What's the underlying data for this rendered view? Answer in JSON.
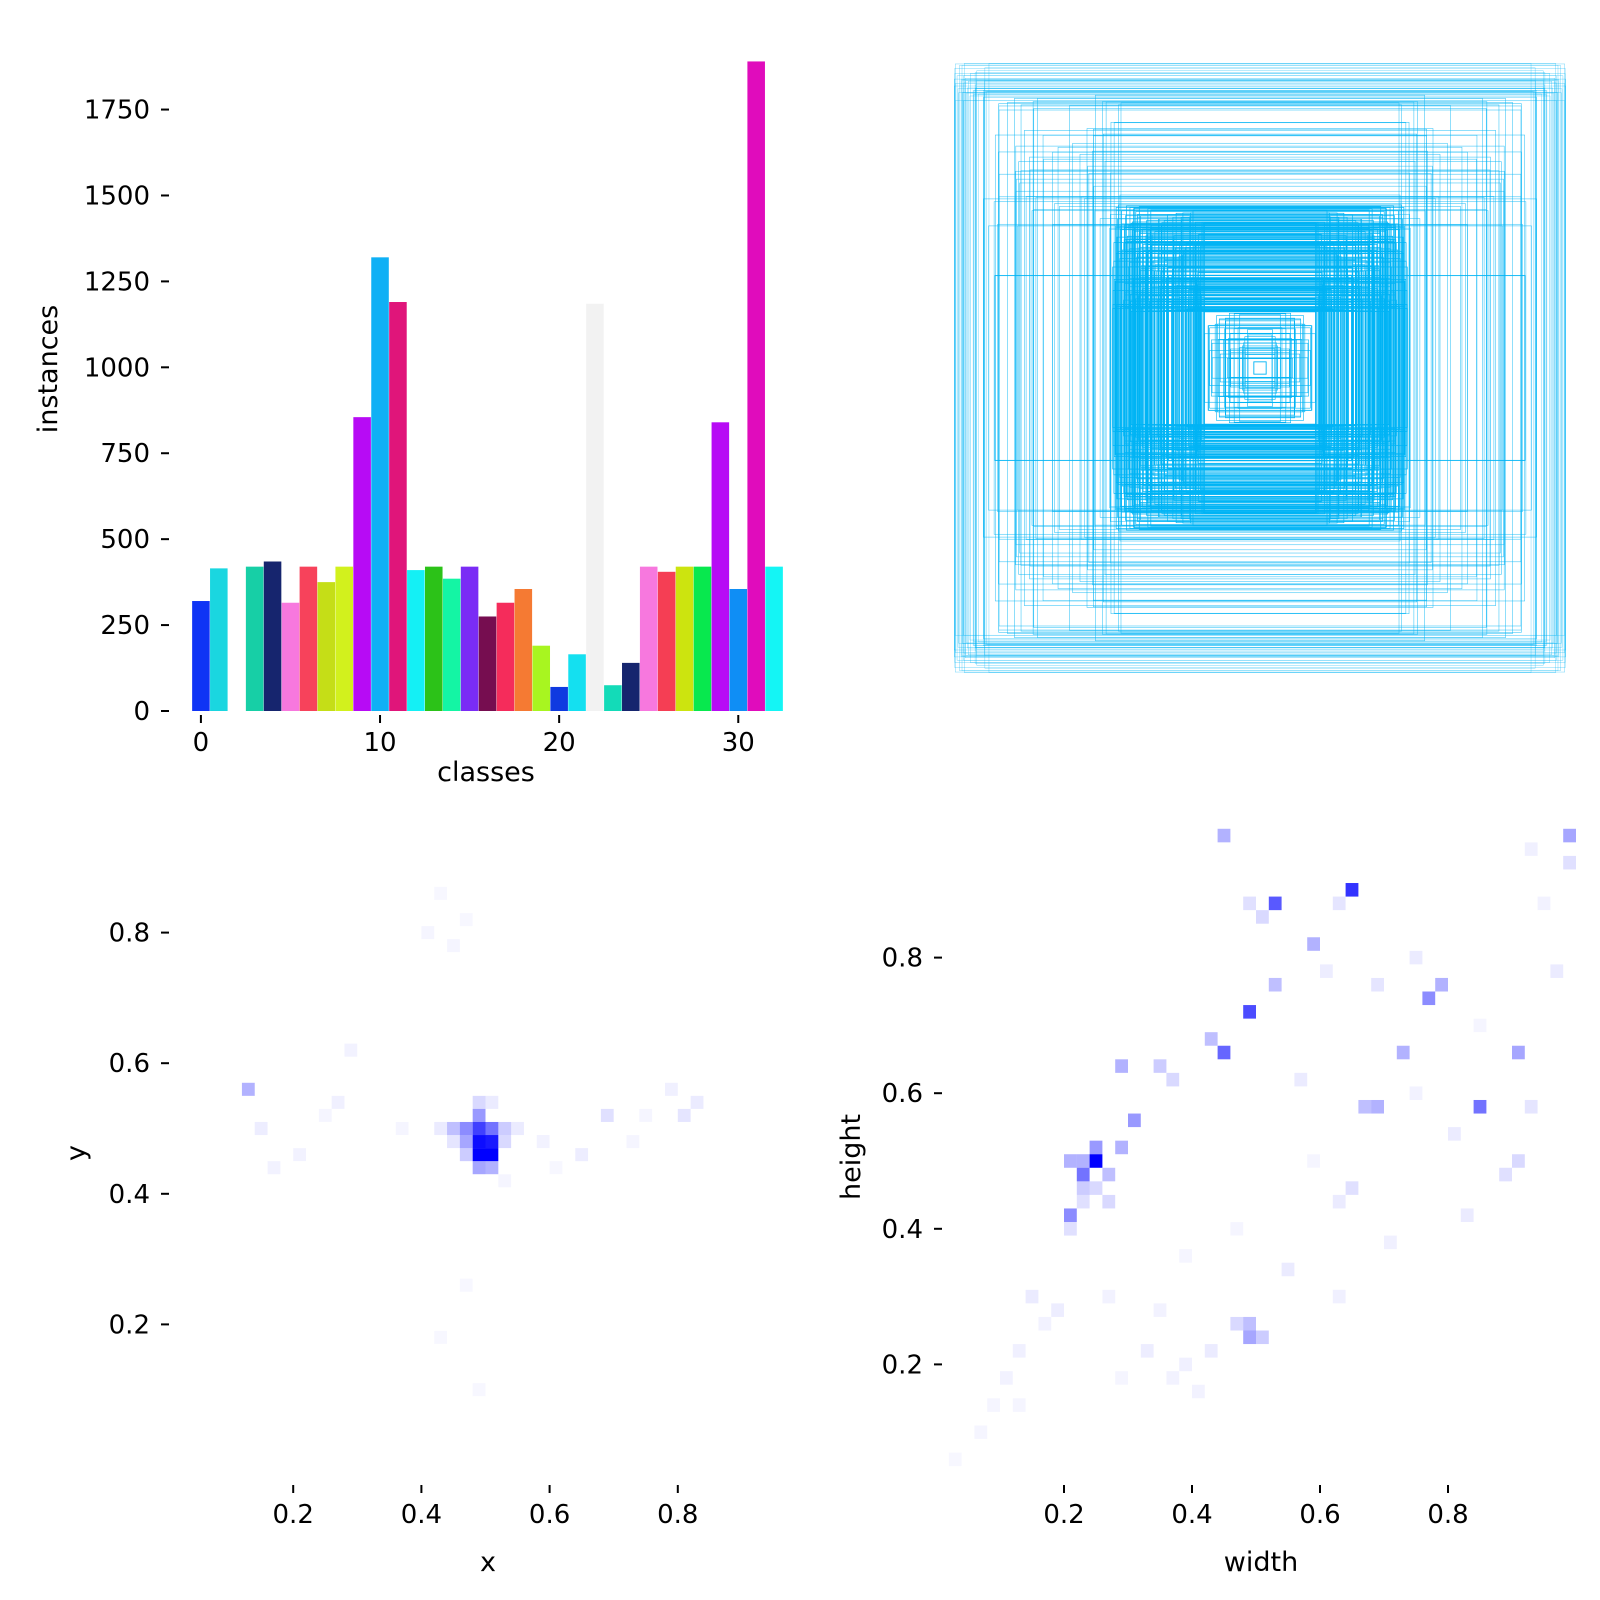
{
  "chart_data": [
    {
      "type": "bar",
      "panel": "top-left",
      "xlabel": "classes",
      "ylabel": "instances",
      "xlim": [
        -1,
        33
      ],
      "ylim": [
        0,
        1900
      ],
      "x_ticks": [
        "0",
        "10",
        "20",
        "30"
      ],
      "y_ticks": [
        "0",
        "250",
        "500",
        "750",
        "1000",
        "1250",
        "1500",
        "1750"
      ],
      "categories": [
        0,
        1,
        2,
        3,
        4,
        5,
        6,
        7,
        8,
        9,
        10,
        11,
        12,
        13,
        14,
        15,
        16,
        17,
        18,
        19,
        20,
        21,
        22,
        23,
        24,
        25,
        26,
        27,
        28,
        29,
        30,
        31,
        32
      ],
      "values": [
        320,
        415,
        0,
        420,
        435,
        315,
        420,
        375,
        420,
        855,
        1320,
        1190,
        410,
        420,
        385,
        420,
        275,
        315,
        355,
        190,
        70,
        165,
        1185,
        75,
        140,
        420,
        405,
        420,
        420,
        840,
        355,
        1890,
        420
      ],
      "colors": [
        "#0f34f5",
        "#1ad6e0",
        "#ffffff",
        "#17cfa6",
        "#16256e",
        "#f778de",
        "#f7425b",
        "#c5de17",
        "#d2f11d",
        "#b70bf5",
        "#0fb0f5",
        "#e0157a",
        "#14f0f5",
        "#2cc218",
        "#14f5a4",
        "#7a2cf5",
        "#760d50",
        "#f52c5b",
        "#f57a33",
        "#a8f520",
        "#0f3ae0",
        "#14e0f0",
        "#f2f2f2",
        "#13dbb8",
        "#16256e",
        "#f778de",
        "#f53e54",
        "#cce40f",
        "#08e84e",
        "#b70bf5",
        "#0f8ef5",
        "#e00cbc",
        "#14f5f5"
      ]
    },
    {
      "type": "boxes",
      "panel": "top-right",
      "description_color": "#00b4f5"
    },
    {
      "type": "heatmap",
      "panel": "bottom-left",
      "xlabel": "x",
      "ylabel": "y",
      "xlim": [
        0.0,
        1.0
      ],
      "ylim": [
        0.0,
        1.0
      ],
      "x_ticks": [
        "0.2",
        "0.4",
        "0.6",
        "0.8"
      ],
      "y_ticks": [
        "0.2",
        "0.4",
        "0.6",
        "0.8"
      ],
      "color": "#0000ff",
      "cells": [
        [
          0.49,
          0.46,
          1.0
        ],
        [
          0.51,
          0.46,
          1.0
        ],
        [
          0.49,
          0.48,
          0.95
        ],
        [
          0.51,
          0.48,
          0.9
        ],
        [
          0.49,
          0.5,
          0.75
        ],
        [
          0.47,
          0.5,
          0.45
        ],
        [
          0.51,
          0.5,
          0.55
        ],
        [
          0.47,
          0.48,
          0.35
        ],
        [
          0.45,
          0.5,
          0.25
        ],
        [
          0.53,
          0.5,
          0.2
        ],
        [
          0.49,
          0.52,
          0.4
        ],
        [
          0.49,
          0.44,
          0.35
        ],
        [
          0.51,
          0.44,
          0.3
        ],
        [
          0.47,
          0.46,
          0.2
        ],
        [
          0.53,
          0.48,
          0.15
        ],
        [
          0.49,
          0.54,
          0.15
        ],
        [
          0.45,
          0.48,
          0.1
        ],
        [
          0.43,
          0.5,
          0.08
        ],
        [
          0.55,
          0.5,
          0.08
        ],
        [
          0.51,
          0.54,
          0.08
        ],
        [
          0.13,
          0.56,
          0.3
        ],
        [
          0.69,
          0.52,
          0.12
        ],
        [
          0.81,
          0.52,
          0.1
        ],
        [
          0.83,
          0.54,
          0.08
        ],
        [
          0.15,
          0.5,
          0.07
        ],
        [
          0.65,
          0.46,
          0.07
        ],
        [
          0.27,
          0.54,
          0.06
        ],
        [
          0.29,
          0.62,
          0.05
        ],
        [
          0.79,
          0.56,
          0.06
        ],
        [
          0.59,
          0.48,
          0.05
        ],
        [
          0.41,
          0.8,
          0.04
        ],
        [
          0.45,
          0.78,
          0.04
        ],
        [
          0.43,
          0.86,
          0.03
        ],
        [
          0.47,
          0.82,
          0.03
        ],
        [
          0.21,
          0.46,
          0.05
        ],
        [
          0.25,
          0.52,
          0.04
        ],
        [
          0.73,
          0.48,
          0.04
        ],
        [
          0.75,
          0.52,
          0.04
        ],
        [
          0.47,
          0.26,
          0.03
        ],
        [
          0.43,
          0.18,
          0.03
        ],
        [
          0.49,
          0.1,
          0.03
        ],
        [
          0.53,
          0.42,
          0.04
        ],
        [
          0.17,
          0.44,
          0.05
        ],
        [
          0.37,
          0.5,
          0.04
        ],
        [
          0.61,
          0.44,
          0.03
        ]
      ]
    },
    {
      "type": "heatmap",
      "panel": "bottom-right",
      "xlabel": "width",
      "ylabel": "height",
      "xlim": [
        0.0,
        1.0
      ],
      "ylim": [
        0.0,
        1.0
      ],
      "x_ticks": [
        "0.2",
        "0.4",
        "0.6",
        "0.8"
      ],
      "y_ticks": [
        "0.2",
        "0.4",
        "0.6",
        "0.8"
      ],
      "color": "#0000ff",
      "cells": [
        [
          0.25,
          0.5,
          1.0
        ],
        [
          0.23,
          0.48,
          0.55
        ],
        [
          0.21,
          0.42,
          0.45
        ],
        [
          0.25,
          0.52,
          0.4
        ],
        [
          0.21,
          0.5,
          0.3
        ],
        [
          0.23,
          0.5,
          0.3
        ],
        [
          0.27,
          0.48,
          0.25
        ],
        [
          0.29,
          0.52,
          0.3
        ],
        [
          0.31,
          0.56,
          0.4
        ],
        [
          0.29,
          0.64,
          0.3
        ],
        [
          0.45,
          0.66,
          0.6
        ],
        [
          0.49,
          0.72,
          0.7
        ],
        [
          0.53,
          0.88,
          0.65
        ],
        [
          0.65,
          0.9,
          0.8
        ],
        [
          0.77,
          0.74,
          0.45
        ],
        [
          0.79,
          0.76,
          0.3
        ],
        [
          0.85,
          0.58,
          0.55
        ],
        [
          0.69,
          0.58,
          0.3
        ],
        [
          0.67,
          0.58,
          0.25
        ],
        [
          0.73,
          0.66,
          0.3
        ],
        [
          0.91,
          0.66,
          0.35
        ],
        [
          0.45,
          0.98,
          0.3
        ],
        [
          0.99,
          0.98,
          0.35
        ],
        [
          0.49,
          0.24,
          0.35
        ],
        [
          0.49,
          0.26,
          0.25
        ],
        [
          0.59,
          0.82,
          0.3
        ],
        [
          0.53,
          0.76,
          0.25
        ],
        [
          0.43,
          0.68,
          0.25
        ],
        [
          0.35,
          0.64,
          0.2
        ],
        [
          0.37,
          0.62,
          0.15
        ],
        [
          0.51,
          0.24,
          0.2
        ],
        [
          0.47,
          0.26,
          0.15
        ],
        [
          0.23,
          0.46,
          0.2
        ],
        [
          0.25,
          0.46,
          0.15
        ],
        [
          0.27,
          0.44,
          0.15
        ],
        [
          0.23,
          0.44,
          0.12
        ],
        [
          0.21,
          0.4,
          0.12
        ],
        [
          0.15,
          0.3,
          0.08
        ],
        [
          0.19,
          0.28,
          0.07
        ],
        [
          0.13,
          0.22,
          0.06
        ],
        [
          0.11,
          0.18,
          0.05
        ],
        [
          0.33,
          0.22,
          0.07
        ],
        [
          0.43,
          0.22,
          0.08
        ],
        [
          0.39,
          0.2,
          0.06
        ],
        [
          0.71,
          0.38,
          0.06
        ],
        [
          0.63,
          0.44,
          0.08
        ],
        [
          0.65,
          0.46,
          0.12
        ],
        [
          0.91,
          0.5,
          0.15
        ],
        [
          0.89,
          0.48,
          0.12
        ],
        [
          0.81,
          0.54,
          0.08
        ],
        [
          0.83,
          0.42,
          0.08
        ],
        [
          0.99,
          0.94,
          0.12
        ],
        [
          0.97,
          0.78,
          0.08
        ],
        [
          0.61,
          0.78,
          0.07
        ],
        [
          0.63,
          0.3,
          0.06
        ],
        [
          0.55,
          0.34,
          0.08
        ],
        [
          0.57,
          0.62,
          0.08
        ],
        [
          0.51,
          0.86,
          0.15
        ],
        [
          0.49,
          0.88,
          0.12
        ],
        [
          0.63,
          0.88,
          0.1
        ],
        [
          0.69,
          0.76,
          0.1
        ],
        [
          0.75,
          0.8,
          0.08
        ],
        [
          0.93,
          0.58,
          0.1
        ],
        [
          0.07,
          0.1,
          0.04
        ],
        [
          0.09,
          0.14,
          0.04
        ],
        [
          0.17,
          0.26,
          0.05
        ],
        [
          0.27,
          0.3,
          0.05
        ],
        [
          0.35,
          0.28,
          0.05
        ],
        [
          0.39,
          0.36,
          0.04
        ],
        [
          0.47,
          0.4,
          0.04
        ],
        [
          0.59,
          0.5,
          0.04
        ],
        [
          0.75,
          0.6,
          0.05
        ],
        [
          0.85,
          0.7,
          0.04
        ],
        [
          0.95,
          0.88,
          0.05
        ],
        [
          0.93,
          0.96,
          0.06
        ],
        [
          0.41,
          0.16,
          0.05
        ],
        [
          0.37,
          0.18,
          0.05
        ],
        [
          0.29,
          0.18,
          0.04
        ],
        [
          0.13,
          0.14,
          0.04
        ],
        [
          0.03,
          0.06,
          0.03
        ]
      ]
    }
  ]
}
